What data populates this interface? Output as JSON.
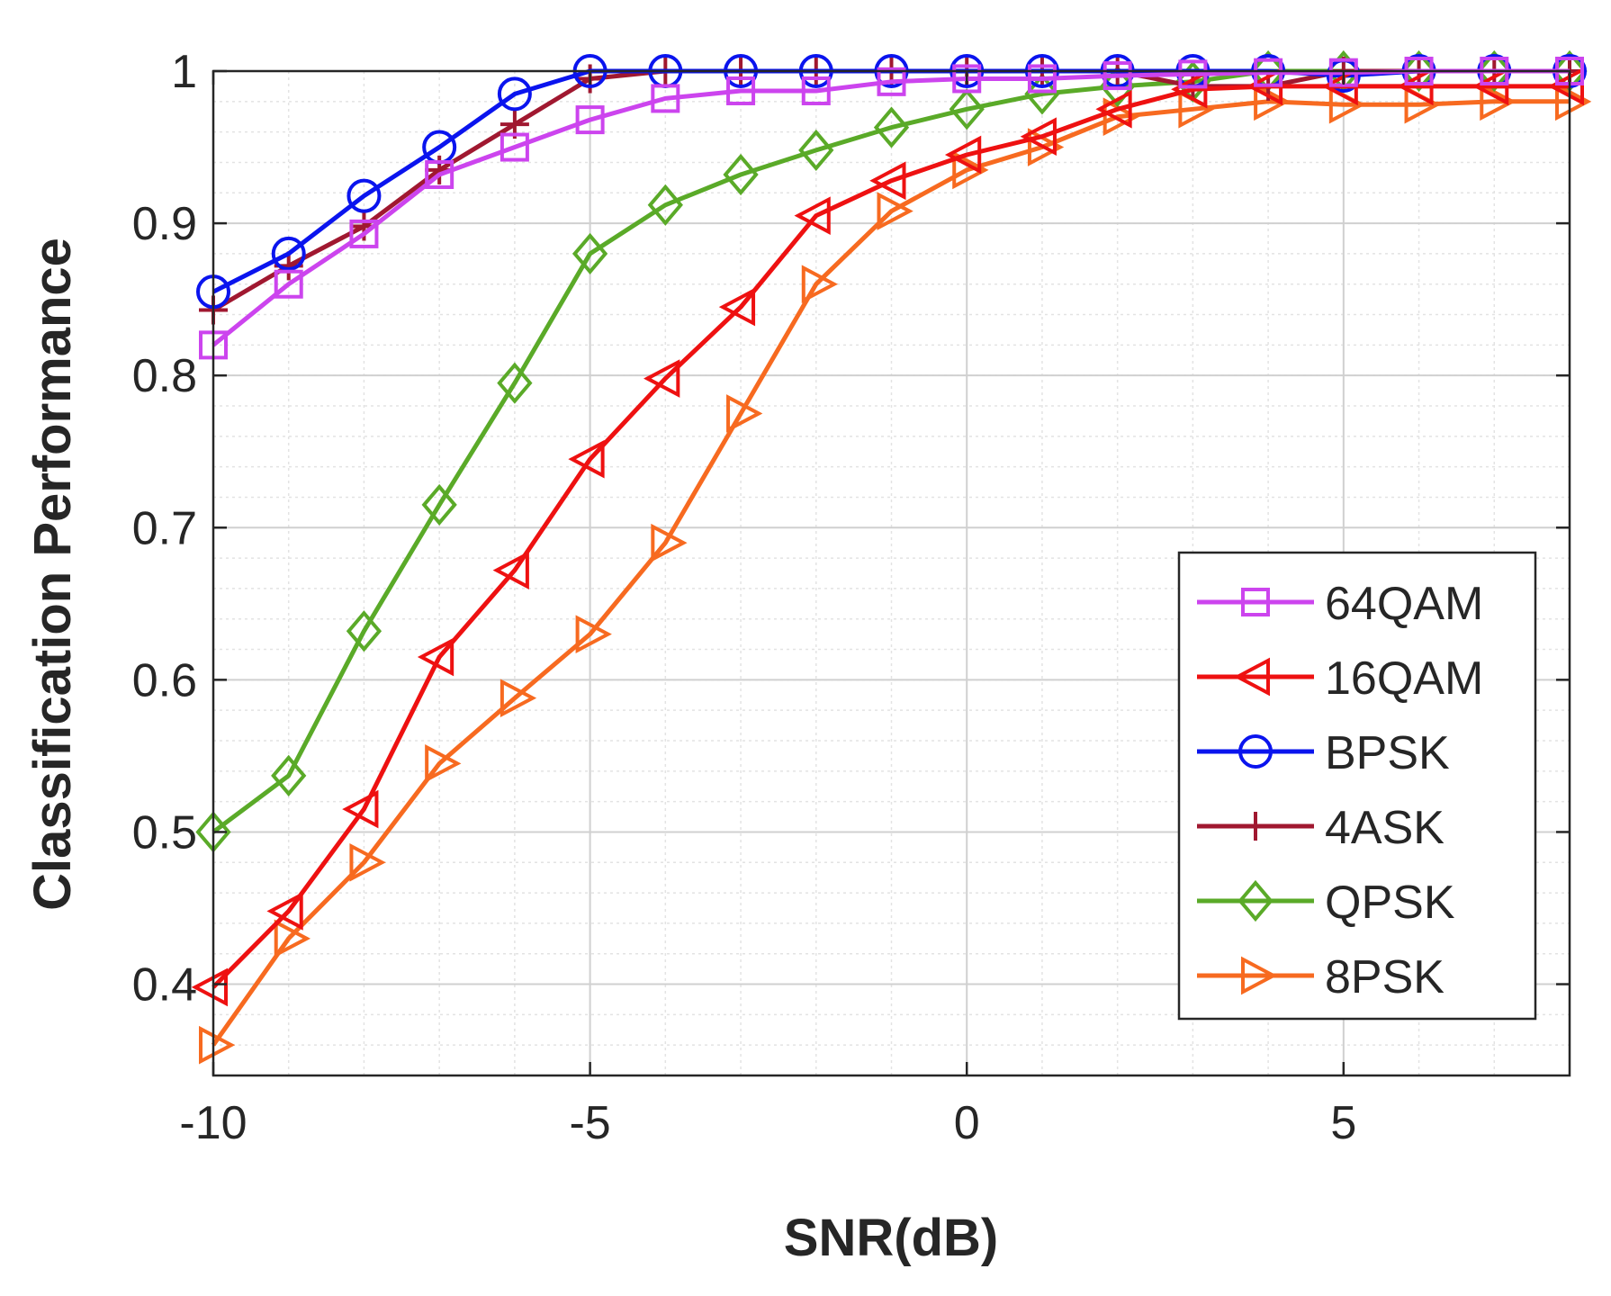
{
  "chart_data": {
    "type": "line",
    "xlabel": "SNR(dB)",
    "ylabel": "Classification Performance",
    "xlim": [
      -10,
      8
    ],
    "ylim": [
      0.34,
      1.0
    ],
    "xticks": [
      -10,
      -5,
      0,
      5
    ],
    "xtick_labels": [
      "-10",
      "-5",
      "0",
      "5"
    ],
    "yticks": [
      0.4,
      0.5,
      0.6,
      0.7,
      0.8,
      0.9,
      1.0
    ],
    "ytick_labels": [
      "0.4",
      "0.5",
      "0.6",
      "0.7",
      "0.8",
      "0.9",
      "1"
    ],
    "grid": true,
    "minor_grid": true,
    "legend_position": "lower-right",
    "x": [
      -10,
      -9,
      -8,
      -7,
      -6,
      -5,
      -4,
      -3,
      -2,
      -1,
      0,
      1,
      2,
      3,
      4,
      5,
      6,
      7,
      8
    ],
    "series": [
      {
        "name": "64QAM",
        "color": "#cc44ee",
        "marker": "square",
        "values": [
          0.82,
          0.86,
          0.893,
          0.932,
          0.95,
          0.968,
          0.982,
          0.987,
          0.987,
          0.993,
          0.995,
          0.995,
          0.997,
          0.998,
          0.999,
          0.999,
          1.0,
          1.0,
          1.0
        ]
      },
      {
        "name": "16QAM",
        "color": "#ee1111",
        "marker": "triangle-left",
        "values": [
          0.398,
          0.448,
          0.515,
          0.615,
          0.672,
          0.745,
          0.798,
          0.845,
          0.905,
          0.928,
          0.945,
          0.957,
          0.975,
          0.988,
          0.99,
          0.99,
          0.99,
          0.99,
          0.99
        ]
      },
      {
        "name": "BPSK",
        "color": "#0a14ee",
        "marker": "circle",
        "values": [
          0.855,
          0.88,
          0.918,
          0.95,
          0.985,
          1.0,
          1.0,
          1.0,
          1.0,
          1.0,
          1.0,
          1.0,
          1.0,
          1.0,
          1.0,
          0.997,
          1.0,
          1.0,
          1.0
        ]
      },
      {
        "name": "4ASK",
        "color": "#a01830",
        "marker": "plus",
        "values": [
          0.843,
          0.872,
          0.898,
          0.935,
          0.965,
          0.995,
          1.0,
          1.0,
          1.0,
          1.0,
          1.0,
          1.0,
          1.0,
          0.99,
          0.99,
          1.0,
          1.0,
          1.0,
          1.0
        ]
      },
      {
        "name": "QPSK",
        "color": "#5aaa28",
        "marker": "diamond",
        "values": [
          0.5,
          0.537,
          0.632,
          0.715,
          0.795,
          0.88,
          0.912,
          0.932,
          0.948,
          0.963,
          0.975,
          0.985,
          0.99,
          0.993,
          1.0,
          1.0,
          1.0,
          1.0,
          1.0
        ]
      },
      {
        "name": "8PSK",
        "color": "#f76a20",
        "marker": "triangle-right",
        "values": [
          0.36,
          0.43,
          0.48,
          0.545,
          0.588,
          0.63,
          0.69,
          0.775,
          0.86,
          0.908,
          0.935,
          0.95,
          0.97,
          0.975,
          0.98,
          0.978,
          0.978,
          0.98,
          0.98
        ]
      }
    ]
  }
}
